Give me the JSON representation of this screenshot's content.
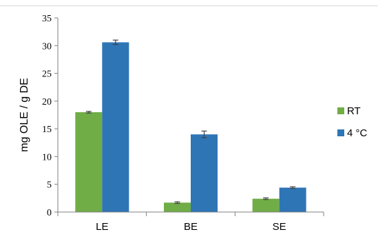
{
  "chart_data": {
    "type": "bar",
    "title": "",
    "xlabel": "",
    "ylabel": "mg OLE / g DE",
    "categories": [
      "LE",
      "BE",
      "SE"
    ],
    "ylim": [
      0,
      35
    ],
    "yticks": [
      0,
      5,
      10,
      15,
      20,
      25,
      30,
      35
    ],
    "grid": false,
    "legend_position": "right",
    "series": [
      {
        "name": "RT",
        "color": "#70ad47",
        "values": [
          18.0,
          1.7,
          2.4
        ],
        "errors": [
          0.15,
          0.15,
          0.15
        ]
      },
      {
        "name": "4 °C",
        "color": "#2e75b6",
        "values": [
          30.6,
          14.0,
          4.4
        ],
        "errors": [
          0.4,
          0.6,
          0.15
        ]
      }
    ]
  }
}
